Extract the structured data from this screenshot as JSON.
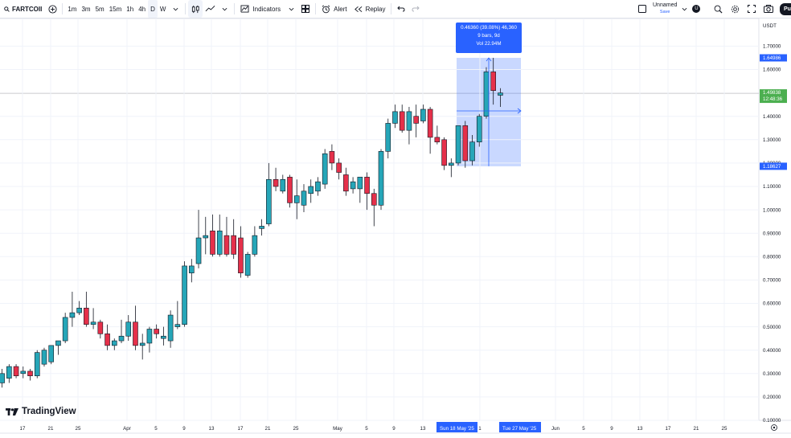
{
  "toolbar": {
    "symbol": "FARTCOII",
    "timeframes": [
      "1m",
      "3m",
      "5m",
      "15m",
      "1h",
      "4h",
      "D",
      "W"
    ],
    "active_timeframe": "D",
    "indicators_label": "Indicators",
    "alert_label": "Alert",
    "replay_label": "Replay",
    "layout_name": "Unnamed",
    "save_label": "Save",
    "avatar_letter": "U",
    "publish_label": "Pu"
  },
  "price_axis": {
    "currency": "USDT",
    "ticks": [
      "1.70000",
      "1.60000",
      "1.40000",
      "1.30000",
      "1.20000",
      "1.10000",
      "1.00000",
      "0.90000",
      "0.80000",
      "0.70000",
      "0.60000",
      "0.50000",
      "0.40000",
      "0.30000",
      "0.20000",
      "0.10000"
    ],
    "high_tag": "1.64986",
    "last_price": "1.49838",
    "countdown": "12:48:36",
    "low_tag": "1.18627"
  },
  "time_axis": {
    "ticks": [
      "17",
      "21",
      "25",
      "Apr",
      "5",
      "9",
      "13",
      "17",
      "21",
      "25",
      "May",
      "5",
      "9",
      "13",
      "1",
      "Jun",
      "5",
      "9",
      "13",
      "17",
      "21",
      "25"
    ],
    "range_start": "Sun 18 May '25",
    "range_end": "Tue 27 May '25"
  },
  "measure": {
    "line1": "0.46360 (39.08%) 46,360",
    "line2": "9 bars, 9d",
    "line3": "Vol 22.94M"
  },
  "brand": "TradingView",
  "colors": {
    "up": "#26a6b8",
    "down": "#e5304a",
    "measure_fill": "#c9d9ff",
    "accent": "#2962ff",
    "last_price": "#4caf50"
  },
  "chart_data": {
    "type": "candlestick",
    "ylim": [
      0.1,
      1.75
    ],
    "candles": [
      {
        "o": 0.26,
        "h": 0.32,
        "l": 0.24,
        "c": 0.3
      },
      {
        "o": 0.28,
        "h": 0.34,
        "l": 0.26,
        "c": 0.33
      },
      {
        "o": 0.33,
        "h": 0.34,
        "l": 0.28,
        "c": 0.29
      },
      {
        "o": 0.3,
        "h": 0.33,
        "l": 0.28,
        "c": 0.31
      },
      {
        "o": 0.31,
        "h": 0.32,
        "l": 0.27,
        "c": 0.29
      },
      {
        "o": 0.29,
        "h": 0.4,
        "l": 0.28,
        "c": 0.39
      },
      {
        "o": 0.34,
        "h": 0.41,
        "l": 0.33,
        "c": 0.4
      },
      {
        "o": 0.35,
        "h": 0.42,
        "l": 0.34,
        "c": 0.42
      },
      {
        "o": 0.42,
        "h": 0.44,
        "l": 0.38,
        "c": 0.44
      },
      {
        "o": 0.44,
        "h": 0.56,
        "l": 0.43,
        "c": 0.54
      },
      {
        "o": 0.54,
        "h": 0.65,
        "l": 0.5,
        "c": 0.56
      },
      {
        "o": 0.56,
        "h": 0.61,
        "l": 0.55,
        "c": 0.58
      },
      {
        "o": 0.58,
        "h": 0.65,
        "l": 0.5,
        "c": 0.51
      },
      {
        "o": 0.51,
        "h": 0.58,
        "l": 0.49,
        "c": 0.52
      },
      {
        "o": 0.52,
        "h": 0.53,
        "l": 0.45,
        "c": 0.47
      },
      {
        "o": 0.47,
        "h": 0.51,
        "l": 0.4,
        "c": 0.42
      },
      {
        "o": 0.42,
        "h": 0.45,
        "l": 0.4,
        "c": 0.44
      },
      {
        "o": 0.44,
        "h": 0.53,
        "l": 0.43,
        "c": 0.46
      },
      {
        "o": 0.46,
        "h": 0.55,
        "l": 0.44,
        "c": 0.52
      },
      {
        "o": 0.52,
        "h": 0.59,
        "l": 0.4,
        "c": 0.42
      },
      {
        "o": 0.42,
        "h": 0.47,
        "l": 0.36,
        "c": 0.43
      },
      {
        "o": 0.43,
        "h": 0.5,
        "l": 0.39,
        "c": 0.49
      },
      {
        "o": 0.49,
        "h": 0.51,
        "l": 0.45,
        "c": 0.47
      },
      {
        "o": 0.45,
        "h": 0.5,
        "l": 0.42,
        "c": 0.46
      },
      {
        "o": 0.44,
        "h": 0.57,
        "l": 0.41,
        "c": 0.55
      },
      {
        "o": 0.5,
        "h": 0.61,
        "l": 0.49,
        "c": 0.51
      },
      {
        "o": 0.51,
        "h": 0.78,
        "l": 0.5,
        "c": 0.76
      },
      {
        "o": 0.73,
        "h": 0.79,
        "l": 0.69,
        "c": 0.76
      },
      {
        "o": 0.77,
        "h": 1.0,
        "l": 0.75,
        "c": 0.88
      },
      {
        "o": 0.88,
        "h": 0.97,
        "l": 0.81,
        "c": 0.89
      },
      {
        "o": 0.91,
        "h": 0.98,
        "l": 0.8,
        "c": 0.81
      },
      {
        "o": 0.81,
        "h": 0.98,
        "l": 0.8,
        "c": 0.91
      },
      {
        "o": 0.89,
        "h": 0.97,
        "l": 0.8,
        "c": 0.81
      },
      {
        "o": 0.89,
        "h": 0.96,
        "l": 0.79,
        "c": 0.81
      },
      {
        "o": 0.88,
        "h": 0.93,
        "l": 0.71,
        "c": 0.73
      },
      {
        "o": 0.72,
        "h": 0.82,
        "l": 0.71,
        "c": 0.81
      },
      {
        "o": 0.81,
        "h": 0.93,
        "l": 0.8,
        "c": 0.89
      },
      {
        "o": 0.92,
        "h": 0.96,
        "l": 0.89,
        "c": 0.93
      },
      {
        "o": 0.94,
        "h": 1.2,
        "l": 0.93,
        "c": 1.13
      },
      {
        "o": 1.13,
        "h": 1.18,
        "l": 1.08,
        "c": 1.1
      },
      {
        "o": 1.08,
        "h": 1.15,
        "l": 1.07,
        "c": 1.13
      },
      {
        "o": 1.14,
        "h": 1.15,
        "l": 1.01,
        "c": 1.03
      },
      {
        "o": 1.03,
        "h": 1.13,
        "l": 0.96,
        "c": 1.06
      },
      {
        "o": 1.02,
        "h": 1.11,
        "l": 0.99,
        "c": 1.08
      },
      {
        "o": 1.07,
        "h": 1.13,
        "l": 1.03,
        "c": 1.1
      },
      {
        "o": 1.08,
        "h": 1.14,
        "l": 1.06,
        "c": 1.12
      },
      {
        "o": 1.11,
        "h": 1.26,
        "l": 1.09,
        "c": 1.24
      },
      {
        "o": 1.25,
        "h": 1.28,
        "l": 1.17,
        "c": 1.2
      },
      {
        "o": 1.2,
        "h": 1.22,
        "l": 1.13,
        "c": 1.16
      },
      {
        "o": 1.15,
        "h": 1.18,
        "l": 1.06,
        "c": 1.08
      },
      {
        "o": 1.09,
        "h": 1.14,
        "l": 1.07,
        "c": 1.12
      },
      {
        "o": 1.09,
        "h": 1.14,
        "l": 1.03,
        "c": 1.14
      },
      {
        "o": 1.14,
        "h": 1.16,
        "l": 1.0,
        "c": 1.07
      },
      {
        "o": 1.07,
        "h": 1.09,
        "l": 0.93,
        "c": 1.02
      },
      {
        "o": 1.02,
        "h": 1.26,
        "l": 1.0,
        "c": 1.25
      },
      {
        "o": 1.25,
        "h": 1.39,
        "l": 1.22,
        "c": 1.37
      },
      {
        "o": 1.37,
        "h": 1.45,
        "l": 1.35,
        "c": 1.42
      },
      {
        "o": 1.42,
        "h": 1.45,
        "l": 1.33,
        "c": 1.34
      },
      {
        "o": 1.34,
        "h": 1.44,
        "l": 1.28,
        "c": 1.42
      },
      {
        "o": 1.4,
        "h": 1.45,
        "l": 1.31,
        "c": 1.37
      },
      {
        "o": 1.38,
        "h": 1.45,
        "l": 1.37,
        "c": 1.43
      },
      {
        "o": 1.43,
        "h": 1.44,
        "l": 1.24,
        "c": 1.31
      },
      {
        "o": 1.31,
        "h": 1.36,
        "l": 1.28,
        "c": 1.29
      },
      {
        "o": 1.3,
        "h": 1.31,
        "l": 1.17,
        "c": 1.19
      },
      {
        "o": 1.19,
        "h": 1.22,
        "l": 1.14,
        "c": 1.2
      },
      {
        "o": 1.2,
        "h": 1.36,
        "l": 1.19,
        "c": 1.36
      },
      {
        "o": 1.36,
        "h": 1.38,
        "l": 1.18,
        "c": 1.21
      },
      {
        "o": 1.21,
        "h": 1.32,
        "l": 1.19,
        "c": 1.29
      },
      {
        "o": 1.29,
        "h": 1.41,
        "l": 1.27,
        "c": 1.4
      },
      {
        "o": 1.4,
        "h": 1.61,
        "l": 1.39,
        "c": 1.59
      },
      {
        "o": 1.59,
        "h": 1.65,
        "l": 1.45,
        "c": 1.51
      },
      {
        "o": 1.49,
        "h": 1.52,
        "l": 1.44,
        "c": 1.5
      }
    ]
  }
}
